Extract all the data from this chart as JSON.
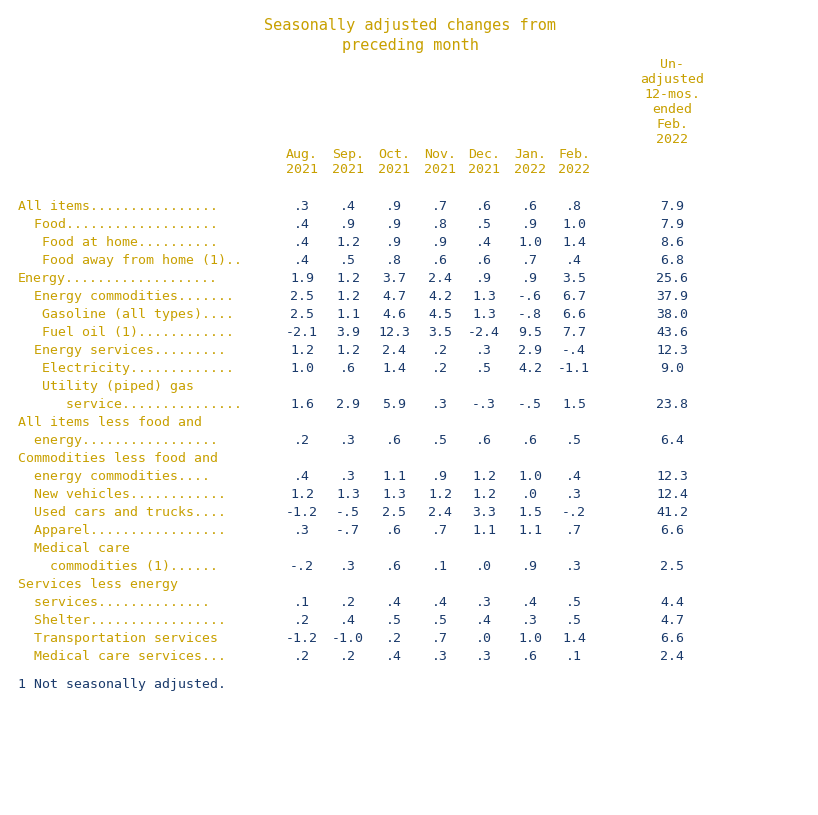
{
  "title_line1": "Seasonally adjusted changes from",
  "title_line2": "preceding month",
  "title_color": "#c8a000",
  "val_color": "#1a3a6b",
  "label_color": "#c8a000",
  "bg_color": "#ffffff",
  "col_headers_short": [
    "Aug.\n2021",
    "Sep.\n2021",
    "Oct.\n2021",
    "Nov.\n2021",
    "Dec.\n2021",
    "Jan.\n2022",
    "Feb.\n2022"
  ],
  "col_header_last": "Un-\nadjusted\n12-mos.\nended\nFeb.\n2022",
  "rows": [
    {
      "label": "All items................",
      "line2": null,
      "values": [
        ".3",
        ".4",
        ".9",
        ".7",
        ".6",
        ".6",
        ".8",
        "7.9"
      ]
    },
    {
      "label": "  Food...................",
      "line2": null,
      "values": [
        ".4",
        ".9",
        ".9",
        ".8",
        ".5",
        ".9",
        "1.0",
        "7.9"
      ]
    },
    {
      "label": "   Food at home..........",
      "line2": null,
      "values": [
        ".4",
        "1.2",
        ".9",
        ".9",
        ".4",
        "1.0",
        "1.4",
        "8.6"
      ]
    },
    {
      "label": "   Food away from home (1)..",
      "line2": null,
      "values": [
        ".4",
        ".5",
        ".8",
        ".6",
        ".6",
        ".7",
        ".4",
        "6.8"
      ]
    },
    {
      "label": "Energy...................",
      "line2": null,
      "values": [
        "1.9",
        "1.2",
        "3.7",
        "2.4",
        ".9",
        ".9",
        "3.5",
        "25.6"
      ]
    },
    {
      "label": "  Energy commodities.......",
      "line2": null,
      "values": [
        "2.5",
        "1.2",
        "4.7",
        "4.2",
        "1.3",
        "-.6",
        "6.7",
        "37.9"
      ]
    },
    {
      "label": "   Gasoline (all types)....",
      "line2": null,
      "values": [
        "2.5",
        "1.1",
        "4.6",
        "4.5",
        "1.3",
        "-.8",
        "6.6",
        "38.0"
      ]
    },
    {
      "label": "   Fuel oil (1)............",
      "line2": null,
      "values": [
        "-2.1",
        "3.9",
        "12.3",
        "3.5",
        "-2.4",
        "9.5",
        "7.7",
        "43.6"
      ]
    },
    {
      "label": "  Energy services.........",
      "line2": null,
      "values": [
        "1.2",
        "1.2",
        "2.4",
        ".2",
        ".3",
        "2.9",
        "-.4",
        "12.3"
      ]
    },
    {
      "label": "   Electricity.............",
      "line2": null,
      "values": [
        "1.0",
        ".6",
        "1.4",
        ".2",
        ".5",
        "4.2",
        "-1.1",
        "9.0"
      ]
    },
    {
      "label": "   Utility (piped) gas",
      "line2": "      service...............",
      "values": [
        "1.6",
        "2.9",
        "5.9",
        ".3",
        "-.3",
        "-.5",
        "1.5",
        "23.8"
      ]
    },
    {
      "label": "All items less food and",
      "line2": "  energy.................",
      "values": [
        ".2",
        ".3",
        ".6",
        ".5",
        ".6",
        ".6",
        ".5",
        "6.4"
      ]
    },
    {
      "label": "Commodities less food and",
      "line2": "  energy commodities....",
      "values": [
        ".4",
        ".3",
        "1.1",
        ".9",
        "1.2",
        "1.0",
        ".4",
        "12.3"
      ]
    },
    {
      "label": "  New vehicles............",
      "line2": null,
      "values": [
        "1.2",
        "1.3",
        "1.3",
        "1.2",
        "1.2",
        ".0",
        ".3",
        "12.4"
      ]
    },
    {
      "label": "  Used cars and trucks....",
      "line2": null,
      "values": [
        "-1.2",
        "-.5",
        "2.5",
        "2.4",
        "3.3",
        "1.5",
        "-.2",
        "41.2"
      ]
    },
    {
      "label": "  Apparel.................",
      "line2": null,
      "values": [
        ".3",
        "-.7",
        ".6",
        ".7",
        "1.1",
        "1.1",
        ".7",
        "6.6"
      ]
    },
    {
      "label": "  Medical care",
      "line2": "    commodities (1)......",
      "values": [
        "-.2",
        ".3",
        ".6",
        ".1",
        ".0",
        ".9",
        ".3",
        "2.5"
      ]
    },
    {
      "label": "Services less energy",
      "line2": "  services..............",
      "values": [
        ".1",
        ".2",
        ".4",
        ".4",
        ".3",
        ".4",
        ".5",
        "4.4"
      ]
    },
    {
      "label": "  Shelter.................",
      "line2": null,
      "values": [
        ".2",
        ".4",
        ".5",
        ".5",
        ".4",
        ".3",
        ".5",
        "4.7"
      ]
    },
    {
      "label": "  Transportation services",
      "line2": null,
      "values": [
        "-1.2",
        "-1.0",
        ".2",
        ".7",
        ".0",
        "1.0",
        "1.4",
        "6.6"
      ]
    },
    {
      "label": "  Medical care services...",
      "line2": null,
      "values": [
        ".2",
        ".2",
        ".4",
        ".3",
        ".3",
        ".6",
        ".1",
        "2.4"
      ]
    }
  ],
  "footnote": "1 Not seasonally adjusted.",
  "footnote_color": "#1a3a6b"
}
